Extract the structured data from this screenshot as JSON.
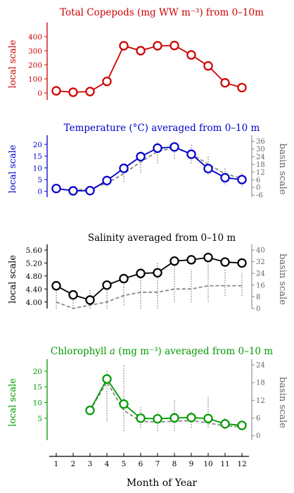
{
  "x_axis": {
    "label": "Month of Year",
    "ticks": [
      1,
      2,
      3,
      4,
      5,
      6,
      7,
      8,
      9,
      10,
      11,
      12
    ]
  },
  "chart_data": [
    {
      "type": "line",
      "title": "Total Copepods (mg WW m⁻³) from 0–10m",
      "color": "#cc0000",
      "ylabel": "local scale",
      "ylim": [
        -50,
        460
      ],
      "yticks": [
        0,
        100,
        200,
        300,
        400
      ],
      "x": [
        1,
        2,
        3,
        4,
        5,
        6,
        7,
        8,
        9,
        10,
        11,
        12
      ],
      "values": [
        15,
        5,
        10,
        82,
        335,
        300,
        335,
        337,
        270,
        192,
        72,
        38
      ]
    },
    {
      "type": "line",
      "title": "Temperature (°C) averaged from 0–10 m",
      "color": "#0000cc",
      "ylabel": "local scale",
      "ylabel2": "basin scale",
      "ylim": [
        -2.5,
        21.5
      ],
      "yticks": [
        0,
        5,
        10,
        15,
        20
      ],
      "y2lim": [
        -7.6,
        36.4
      ],
      "y2ticks": [
        -6,
        0,
        6,
        12,
        18,
        24,
        30,
        36
      ],
      "x": [
        1,
        2,
        3,
        4,
        5,
        6,
        7,
        8,
        9,
        10,
        11,
        12
      ],
      "values": [
        1.2,
        0.2,
        0.3,
        4.6,
        9.8,
        14.8,
        18.4,
        18.9,
        15.8,
        9.7,
        5.8,
        5.0
      ],
      "basin_values": [
        1.0,
        0.5,
        1.0,
        3.5,
        7.5,
        12.5,
        17.0,
        18.5,
        16.0,
        11.5,
        7.5,
        5.5
      ],
      "basin_scatter": [
        [
          1,
          0,
          2
        ],
        [
          2,
          -1,
          1.5
        ],
        [
          3,
          -0.5,
          2
        ],
        [
          4,
          2,
          6
        ],
        [
          5,
          4,
          11
        ],
        [
          6,
          8,
          17
        ],
        [
          7,
          12,
          21
        ],
        [
          8,
          14,
          23
        ],
        [
          9,
          12,
          20
        ],
        [
          10,
          7,
          15
        ],
        [
          11,
          3,
          10
        ],
        [
          12,
          2,
          8
        ]
      ]
    },
    {
      "type": "line",
      "title": "Salinity averaged from 0–10 m",
      "color": "#000000",
      "ylabel": "local scale",
      "ylabel2": "basin scale",
      "ylim": [
        3.8,
        5.6
      ],
      "yticks": [
        4.0,
        4.4,
        4.8,
        5.2,
        5.6
      ],
      "ytick_labels": [
        "4.00",
        "4.40",
        "4.80",
        "5.20",
        "5.60"
      ],
      "y2lim": [
        0,
        40
      ],
      "y2ticks": [
        0,
        8,
        16,
        24,
        32,
        40
      ],
      "x": [
        1,
        2,
        3,
        4,
        5,
        6,
        7,
        8,
        9,
        10,
        11,
        12
      ],
      "values": [
        4.5,
        4.22,
        4.06,
        4.52,
        4.72,
        4.88,
        4.9,
        5.26,
        5.3,
        5.37,
        5.23,
        5.2
      ],
      "basin_values": [
        4.0,
        3.8,
        3.9,
        4.0,
        4.2,
        4.3,
        4.3,
        4.4,
        4.4,
        4.5,
        4.5,
        4.5
      ],
      "basin_scatter": [
        [
          1,
          3.5,
          4.5
        ],
        [
          2,
          3.5,
          4.3
        ],
        [
          3,
          3.6,
          4.4
        ],
        [
          4,
          3.8,
          4.6
        ],
        [
          5,
          3.9,
          4.8
        ],
        [
          6,
          0,
          5
        ],
        [
          7,
          0,
          5.2
        ],
        [
          8,
          4,
          5.2
        ],
        [
          9,
          4,
          5.0
        ],
        [
          10,
          4,
          5.5
        ],
        [
          11,
          4.2,
          5.0
        ],
        [
          12,
          4.2,
          4.9
        ]
      ]
    },
    {
      "type": "line",
      "title_parts": [
        "Chlorophyll ",
        "a",
        " (mg m⁻³) averaged from 0–10 m"
      ],
      "color": "#009900",
      "ylabel": "local scale",
      "ylabel2": "basin scale",
      "ylim": [
        -2,
        22
      ],
      "yticks": [
        5,
        10,
        15,
        20
      ],
      "y2lim": [
        -1.5,
        24
      ],
      "y2ticks": [
        0,
        6,
        12,
        18,
        24
      ],
      "x": [
        3,
        4,
        5,
        6,
        7,
        8,
        9,
        10,
        11,
        12
      ],
      "values": [
        7.5,
        17.5,
        9.5,
        5.0,
        4.8,
        5.1,
        5.2,
        4.9,
        3.2,
        2.7
      ],
      "basin_values": [
        7.5,
        16.5,
        7.5,
        4.0,
        3.8,
        4.0,
        4.2,
        3.5,
        2.5,
        2.3
      ],
      "basin_scatter": [
        [
          4,
          4,
          20.5
        ],
        [
          5,
          1,
          22
        ],
        [
          6,
          2,
          8.5
        ],
        [
          7,
          1,
          7
        ],
        [
          8,
          1,
          11
        ],
        [
          9,
          2,
          7
        ],
        [
          10,
          2,
          12
        ],
        [
          11,
          1.5,
          5
        ],
        [
          12,
          1.5,
          4
        ]
      ]
    }
  ]
}
